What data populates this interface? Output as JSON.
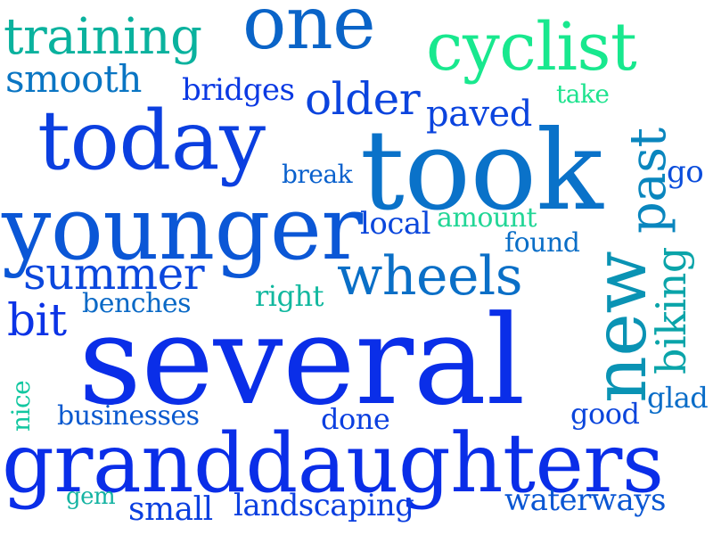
{
  "words": {
    "several": {
      "text": "several",
      "color": "#0a2ee8"
    },
    "granddaughters": {
      "text": "granddaughters",
      "color": "#0a2ee8"
    },
    "younger": {
      "text": "younger",
      "color": "#0b57d6"
    },
    "took": {
      "text": "took",
      "color": "#0a72c9"
    },
    "today": {
      "text": "today",
      "color": "#0b3fe0"
    },
    "one": {
      "text": "one",
      "color": "#0a64c8"
    },
    "cyclist": {
      "text": "cyclist",
      "color": "#18e88e"
    },
    "training": {
      "text": "training",
      "color": "#0ab29e"
    },
    "new": {
      "text": "new",
      "color": "#0a93b4"
    },
    "past": {
      "text": "past",
      "color": "#0a86be"
    },
    "wheels": {
      "text": "wheels",
      "color": "#0a6fc7"
    },
    "summer": {
      "text": "summer",
      "color": "#0b47dd"
    },
    "older": {
      "text": "older",
      "color": "#0b44de"
    },
    "biking": {
      "text": "biking",
      "color": "#0aa4a9"
    },
    "bit": {
      "text": "bit",
      "color": "#0b33e6"
    },
    "smooth": {
      "text": "smooth",
      "color": "#0a75c3"
    },
    "bridges": {
      "text": "bridges",
      "color": "#0b39e3"
    },
    "paved": {
      "text": "paved",
      "color": "#0b44de"
    },
    "break": {
      "text": "break",
      "color": "#0a61cd"
    },
    "local": {
      "text": "local",
      "color": "#0b47dc"
    },
    "amount": {
      "text": "amount",
      "color": "#22d696"
    },
    "found": {
      "text": "found",
      "color": "#0a6ec7"
    },
    "take": {
      "text": "take",
      "color": "#1fe38f"
    },
    "go": {
      "text": "go",
      "color": "#0b4ddc"
    },
    "right": {
      "text": "right",
      "color": "#12b89f"
    },
    "benches": {
      "text": "benches",
      "color": "#0a69c6"
    },
    "nice": {
      "text": "nice",
      "color": "#12c7a0"
    },
    "businesses": {
      "text": "businesses",
      "color": "#0a59cf"
    },
    "done": {
      "text": "done",
      "color": "#0b3fe0"
    },
    "good": {
      "text": "good",
      "color": "#0b45dc"
    },
    "glad": {
      "text": "glad",
      "color": "#0a6dc8"
    },
    "gem": {
      "text": "gem",
      "color": "#14b3a2"
    },
    "small": {
      "text": "small",
      "color": "#0b3fe0"
    },
    "landscaping": {
      "text": "landscaping",
      "color": "#0b3fe0"
    },
    "waterways": {
      "text": "waterways",
      "color": "#0a56d3"
    }
  }
}
